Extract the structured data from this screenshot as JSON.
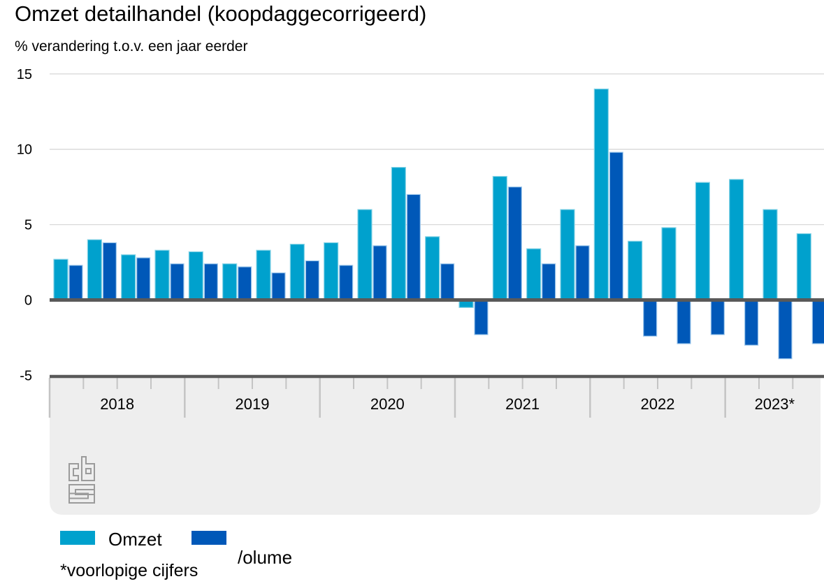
{
  "header": {
    "title": "Omzet detailhandel (koopdaggecorrigeerd)",
    "subtitle": "% verandering t.o.v. een jaar eerder"
  },
  "legend": {
    "items": [
      {
        "label": "Omzet",
        "color": "#00a1cd"
      },
      {
        "label": "/olume",
        "color": "#0058b8"
      }
    ]
  },
  "footnote": "*voorlopige cijfers",
  "logo": "cbs-logo",
  "colors": {
    "omzet": "#00a1cd",
    "volume": "#0058b8",
    "axis": "#595959",
    "gridline": "#d9d9d9",
    "band_background": "#eeeeee",
    "tick": "#c4c4c4",
    "logo_gray": "#9b9b9b"
  },
  "chart_data": {
    "type": "bar",
    "title": "Omzet detailhandel (koopdaggecorrigeerd)",
    "subtitle": "% verandering t.o.v. een jaar eerder",
    "xlabel": "",
    "ylabel": "% verandering t.o.v. een jaar eerder",
    "ylim": [
      -5,
      15
    ],
    "yticks": [
      -5,
      0,
      5,
      10,
      15
    ],
    "grid": true,
    "legend_position": "bottom",
    "year_groups": [
      {
        "label": "2018",
        "quarters": 4
      },
      {
        "label": "2019",
        "quarters": 4
      },
      {
        "label": "2020",
        "quarters": 4
      },
      {
        "label": "2021",
        "quarters": 4
      },
      {
        "label": "2022",
        "quarters": 4
      },
      {
        "label": "2023*",
        "quarters": 3
      }
    ],
    "categories": [
      "2018 Q1",
      "2018 Q2",
      "2018 Q3",
      "2018 Q4",
      "2019 Q1",
      "2019 Q2",
      "2019 Q3",
      "2019 Q4",
      "2020 Q1",
      "2020 Q2",
      "2020 Q3",
      "2020 Q4",
      "2021 Q1",
      "2021 Q2",
      "2021 Q3",
      "2021 Q4",
      "2022 Q1",
      "2022 Q2",
      "2022 Q3",
      "2022 Q4",
      "2023 Q1",
      "2023 Q2",
      "2023 Q3"
    ],
    "series": [
      {
        "name": "Omzet",
        "color": "#00a1cd",
        "values": [
          2.7,
          4.0,
          3.0,
          3.3,
          3.2,
          2.4,
          3.3,
          3.7,
          3.8,
          6.0,
          8.8,
          4.2,
          -0.5,
          8.2,
          3.4,
          6.0,
          14.0,
          3.9,
          4.8,
          7.8,
          8.0,
          6.0,
          4.4
        ]
      },
      {
        "name": "Volume",
        "color": "#0058b8",
        "values": [
          2.3,
          3.8,
          2.8,
          2.4,
          2.4,
          2.2,
          1.8,
          2.6,
          2.3,
          3.6,
          7.0,
          2.4,
          -2.3,
          7.5,
          2.4,
          3.6,
          9.8,
          -2.4,
          -2.9,
          -2.3,
          -3.0,
          -3.9,
          -2.9
        ]
      }
    ]
  }
}
